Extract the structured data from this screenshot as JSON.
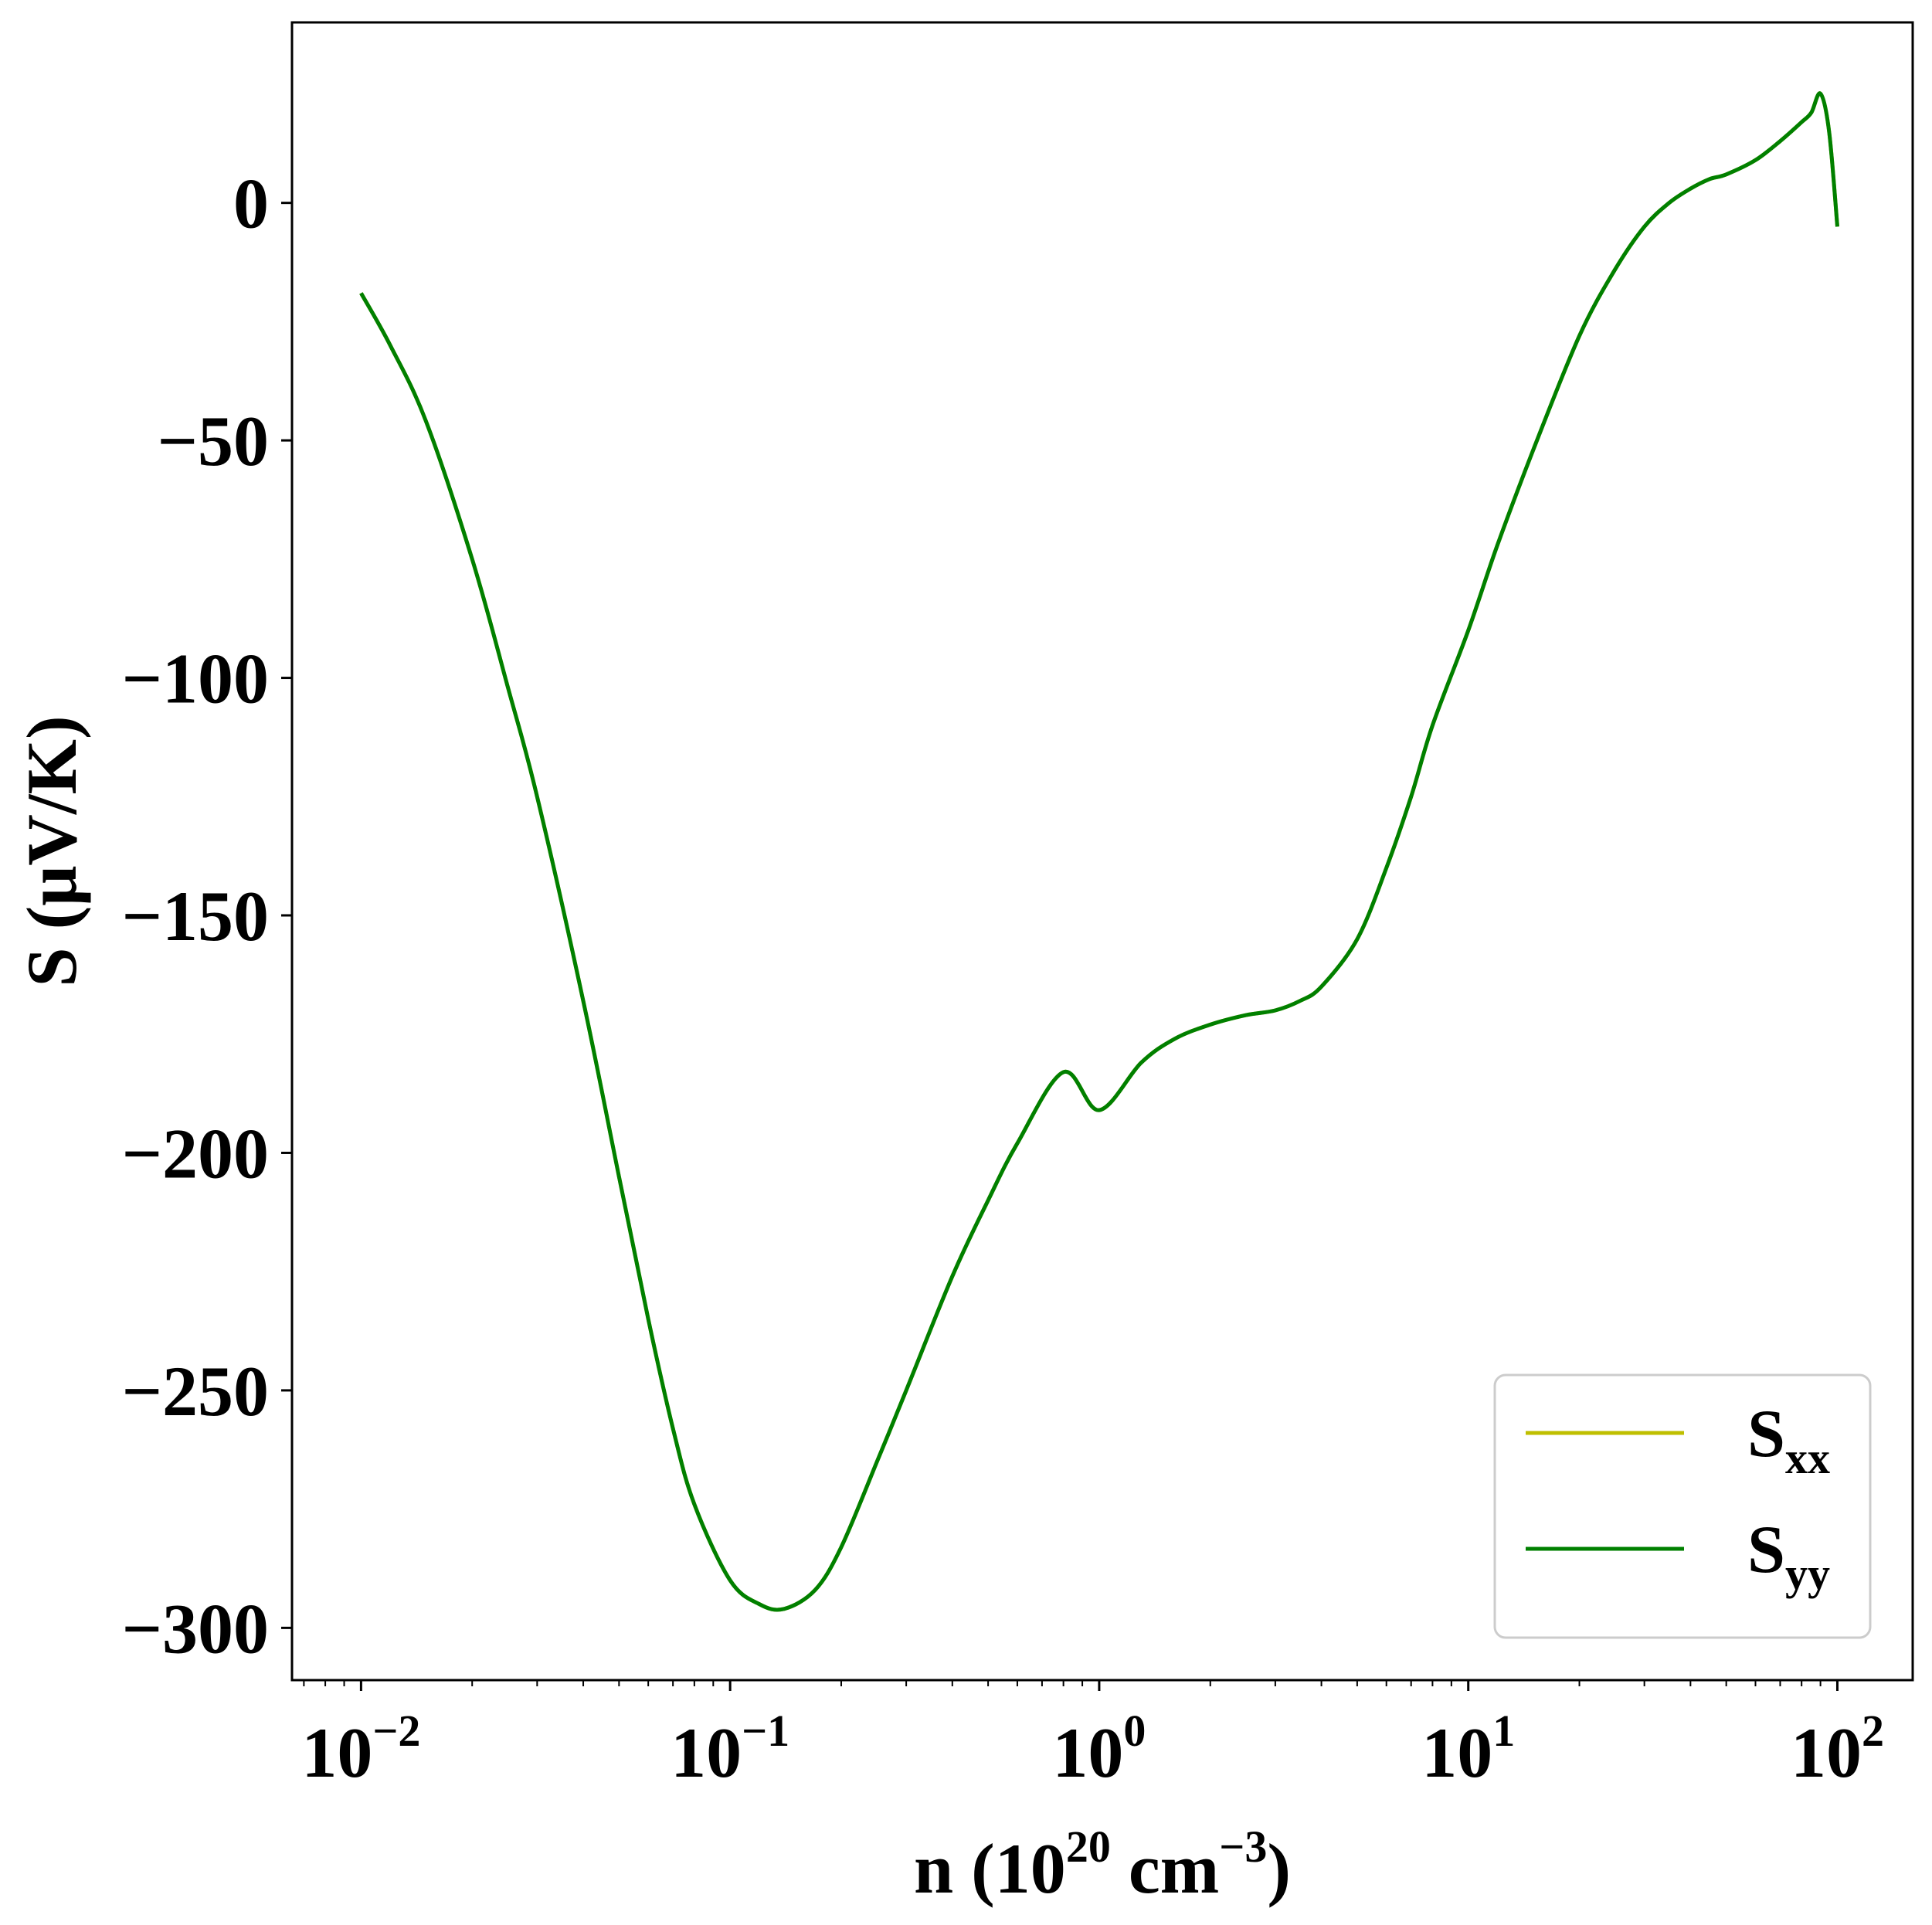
{
  "chart_data": {
    "type": "line",
    "xscale": "log",
    "xlim": [
      0.0065,
      160
    ],
    "ylim": [
      -311,
      38
    ],
    "xlabel": {
      "prefix": "n (10",
      "sup1": "20",
      "mid": " cm",
      "sup2": "−3",
      "suffix": ")"
    },
    "ylabel": "S (μV/K)",
    "xticks": [
      {
        "value": 0.01,
        "base": "10",
        "exp": "−2"
      },
      {
        "value": 0.1,
        "base": "10",
        "exp": "−1"
      },
      {
        "value": 1,
        "base": "10",
        "exp": "0"
      },
      {
        "value": 10,
        "base": "10",
        "exp": "1"
      },
      {
        "value": 100,
        "base": "10",
        "exp": "2"
      }
    ],
    "yticks": [
      {
        "value": 0,
        "label": "0"
      },
      {
        "value": -50,
        "label": "−50"
      },
      {
        "value": -100,
        "label": "−100"
      },
      {
        "value": -150,
        "label": "−150"
      },
      {
        "value": -200,
        "label": "−200"
      },
      {
        "value": -250,
        "label": "−250"
      },
      {
        "value": -300,
        "label": "−300"
      }
    ],
    "grid": false,
    "legend": {
      "position": "lower-right",
      "entries": [
        {
          "base": "S",
          "sub": "xx",
          "color": "#bfbf00"
        },
        {
          "base": "S",
          "sub": "yy",
          "color": "#008000"
        }
      ]
    },
    "series": [
      {
        "name": "Sxx",
        "color": "#bfbf00",
        "x": [
          0.01,
          0.012,
          0.015,
          0.02,
          0.025,
          0.03,
          0.04,
          0.05,
          0.06,
          0.07,
          0.08,
          0.1,
          0.12,
          0.14,
          0.17,
          0.2,
          0.25,
          0.3,
          0.4,
          0.5,
          0.6,
          0.8,
          1.0,
          1.3,
          1.6,
          2.0,
          2.5,
          3.0,
          3.5,
          4.0,
          5.0,
          6.0,
          7.0,
          8.0,
          10,
          12,
          15,
          20,
          25,
          30,
          35,
          40,
          45,
          50,
          60,
          70,
          80,
          85,
          90,
          95,
          100
        ],
        "y": [
          -19,
          -30,
          -46,
          -75,
          -102,
          -125,
          -168,
          -205,
          -235,
          -258,
          -274,
          -290,
          -295,
          -296,
          -292,
          -283,
          -265,
          -250,
          -226,
          -210,
          -198,
          -183,
          -191,
          -181,
          -176,
          -173,
          -171,
          -170,
          -168,
          -165,
          -155,
          -140,
          -125,
          -110,
          -90,
          -72,
          -52,
          -28,
          -14,
          -5,
          0,
          3,
          5,
          6,
          9,
          13,
          17,
          19,
          23,
          15,
          -5
        ]
      },
      {
        "name": "Syy",
        "color": "#008000",
        "x": [
          0.01,
          0.012,
          0.015,
          0.02,
          0.025,
          0.03,
          0.04,
          0.05,
          0.06,
          0.07,
          0.08,
          0.1,
          0.12,
          0.14,
          0.17,
          0.2,
          0.25,
          0.3,
          0.4,
          0.5,
          0.6,
          0.8,
          1.0,
          1.3,
          1.6,
          2.0,
          2.5,
          3.0,
          3.5,
          4.0,
          5.0,
          6.0,
          7.0,
          8.0,
          10,
          12,
          15,
          20,
          25,
          30,
          35,
          40,
          45,
          50,
          60,
          70,
          80,
          85,
          90,
          95,
          100
        ],
        "y": [
          -19,
          -30,
          -46,
          -75,
          -102,
          -125,
          -168,
          -205,
          -235,
          -258,
          -274,
          -290,
          -295,
          -296,
          -292,
          -283,
          -265,
          -250,
          -226,
          -210,
          -198,
          -183,
          -191,
          -181,
          -176,
          -173,
          -171,
          -170,
          -168,
          -165,
          -155,
          -140,
          -125,
          -110,
          -90,
          -72,
          -52,
          -28,
          -14,
          -5,
          0,
          3,
          5,
          6,
          9,
          13,
          17,
          19,
          23,
          15,
          -5
        ]
      }
    ]
  }
}
